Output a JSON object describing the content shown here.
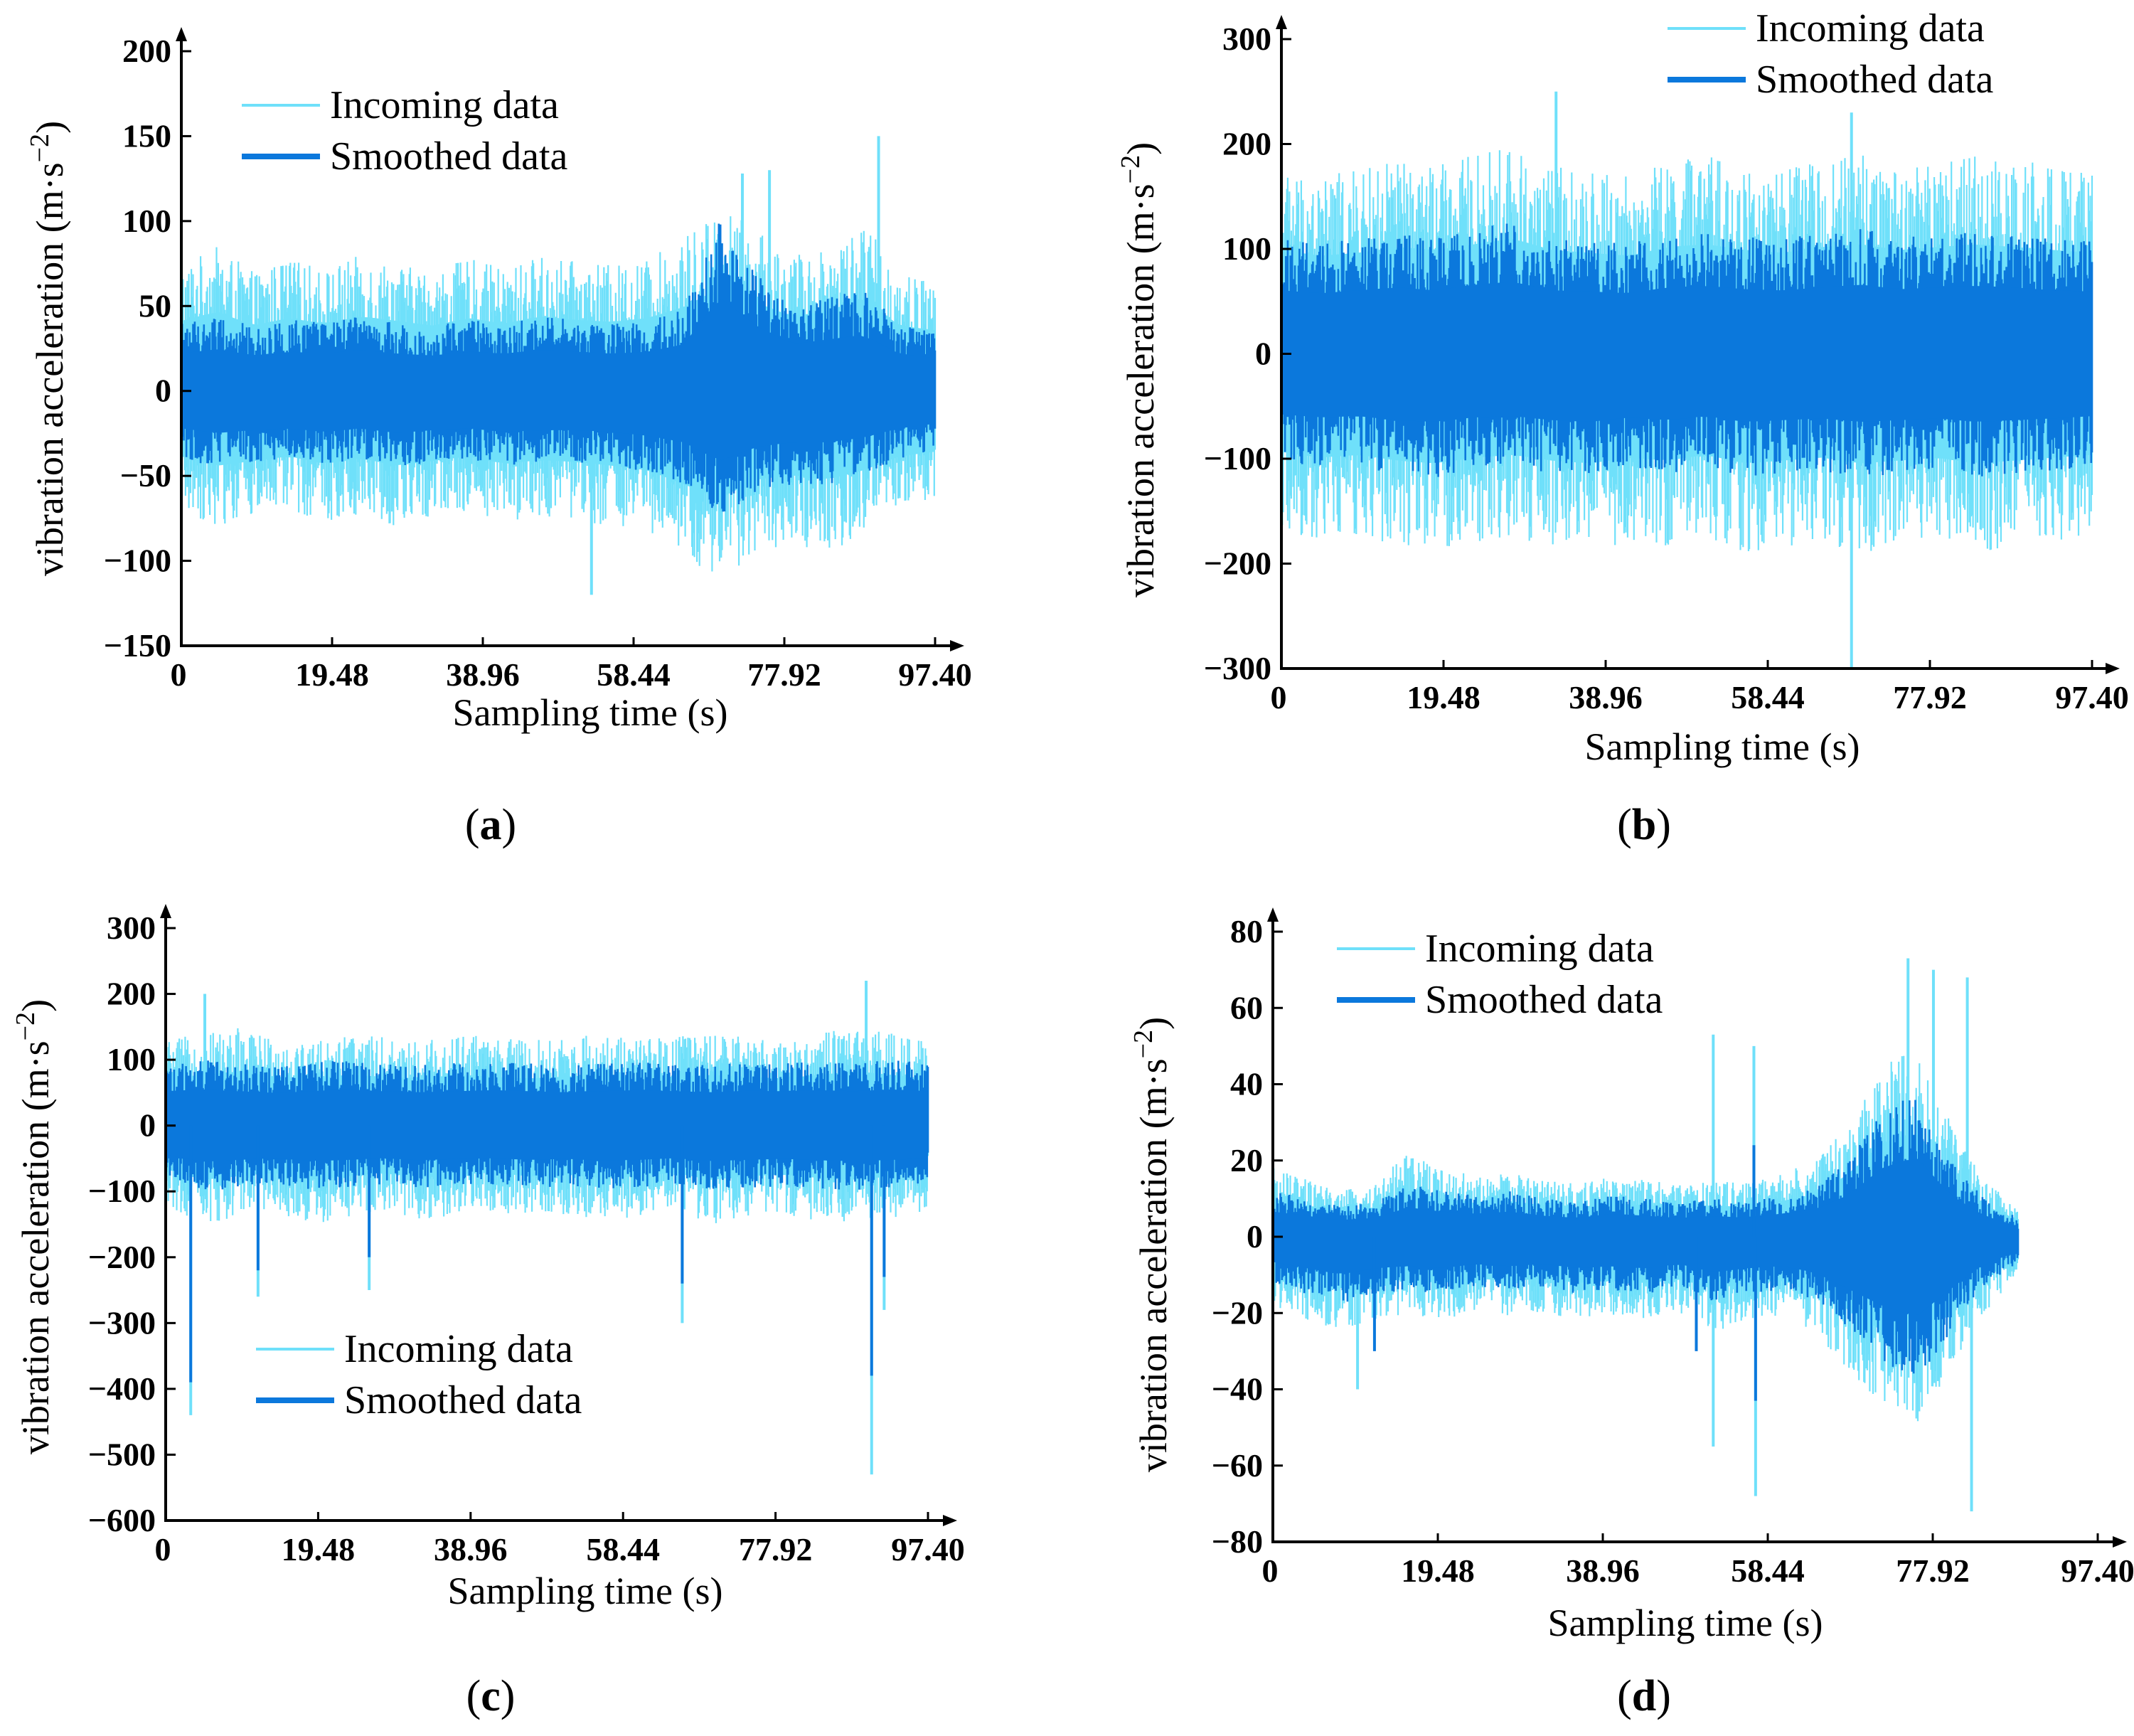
{
  "figure": {
    "colors": {
      "incoming": "#6FE0FA",
      "smoothed": "#0B78DC",
      "axis": "#000000",
      "background": "#ffffff"
    }
  },
  "chart_data": [
    {
      "id": "a",
      "type": "line",
      "panel_label": {
        "open": "(",
        "letter": "a",
        "close": ")"
      },
      "xlabel": "Sampling time (s)",
      "ylabel": {
        "main": "vibration acceleration (m·s",
        "exp": "−2",
        "close": ")"
      },
      "x_ticks": [
        "0",
        "19.48",
        "38.96",
        "58.44",
        "77.92",
        "97.40"
      ],
      "x_tick_values": [
        0,
        19.48,
        38.96,
        58.44,
        77.92,
        97.4
      ],
      "y_ticks": [
        "200",
        "150",
        "100",
        "50",
        "0",
        "−50",
        "−100",
        "−150"
      ],
      "y_tick_values": [
        200,
        150,
        100,
        50,
        0,
        -50,
        -100,
        -150
      ],
      "xlim": [
        0,
        97.4
      ],
      "ylim": [
        -150,
        200
      ],
      "legend_position": "top-left",
      "grid": false,
      "series": [
        {
          "name": "Incoming data",
          "role": "incoming",
          "envelope_upper": [
            75,
            85,
            70,
            78,
            72,
            80,
            75,
            70,
            78,
            72,
            80,
            76,
            74,
            78,
            90,
            110,
            95,
            80,
            85,
            100,
            70,
            65
          ],
          "envelope_lower": [
            -70,
            -80,
            -75,
            -70,
            -78,
            -72,
            -80,
            -75,
            -70,
            -78,
            -74,
            -76,
            -80,
            -85,
            -100,
            -115,
            -95,
            -90,
            -95,
            -85,
            -70,
            -65
          ],
          "spikes": [
            [
              90.1,
              150
            ],
            [
              76.0,
              130
            ],
            [
              53.0,
              -120
            ],
            [
              72.5,
              128
            ]
          ]
        },
        {
          "name": "Smoothed data",
          "role": "smoothed",
          "envelope_upper": [
            40,
            45,
            38,
            42,
            40,
            44,
            40,
            38,
            42,
            40,
            44,
            42,
            40,
            42,
            50,
            100,
            70,
            50,
            55,
            60,
            40,
            35
          ],
          "envelope_lower": [
            -40,
            -45,
            -42,
            -40,
            -44,
            -40,
            -45,
            -42,
            -40,
            -44,
            -42,
            -42,
            -44,
            -48,
            -55,
            -75,
            -60,
            -55,
            -55,
            -50,
            -40,
            -35
          ]
        }
      ]
    },
    {
      "id": "b",
      "type": "line",
      "panel_label": {
        "open": "(",
        "letter": "b",
        "close": ")"
      },
      "xlabel": "Sampling time (s)",
      "ylabel": {
        "main": "vibration acceleration (m·s",
        "exp": "−2",
        "close": ")"
      },
      "x_ticks": [
        "0",
        "19.48",
        "38.96",
        "58.44",
        "77.92",
        "97.40"
      ],
      "x_tick_values": [
        0,
        19.48,
        38.96,
        58.44,
        77.92,
        97.4
      ],
      "y_ticks": [
        "300",
        "200",
        "100",
        "0",
        "−100",
        "−200",
        "−300"
      ],
      "y_tick_values": [
        300,
        200,
        100,
        0,
        -100,
        -200,
        -300
      ],
      "xlim": [
        0,
        97.4
      ],
      "ylim": [
        -300,
        300
      ],
      "legend_position": "top-right",
      "grid": false,
      "series": [
        {
          "name": "Incoming data",
          "role": "incoming",
          "envelope_upper": [
            180,
            170,
            175,
            185,
            180,
            190,
            200,
            180,
            175,
            170,
            185,
            190,
            180,
            175,
            185,
            190,
            180,
            185,
            190,
            185,
            180,
            175
          ],
          "envelope_lower": [
            -170,
            -180,
            -175,
            -185,
            -190,
            -180,
            -175,
            -185,
            -190,
            -180,
            -185,
            -175,
            -190,
            -185,
            -180,
            -190,
            -185,
            -180,
            -190,
            -185,
            -180,
            -175
          ],
          "spikes": [
            [
              33.0,
              250
            ],
            [
              68.5,
              -300
            ],
            [
              68.5,
              230
            ]
          ]
        },
        {
          "name": "Smoothed data",
          "role": "smoothed",
          "envelope_upper": [
            110,
            105,
            110,
            115,
            110,
            120,
            125,
            110,
            108,
            105,
            115,
            118,
            112,
            110,
            115,
            120,
            112,
            115,
            118,
            115,
            110,
            108
          ],
          "envelope_lower": [
            -105,
            -110,
            -108,
            -115,
            -118,
            -110,
            -108,
            -115,
            -118,
            -110,
            -115,
            -108,
            -118,
            -115,
            -112,
            -118,
            -115,
            -112,
            -118,
            -115,
            -112,
            -108
          ]
        }
      ]
    },
    {
      "id": "c",
      "type": "line",
      "panel_label": {
        "open": "(",
        "letter": "c",
        "close": ")"
      },
      "xlabel": "Sampling time (s)",
      "ylabel": {
        "main": "vibration acceleration (m·s",
        "exp": "−2",
        "close": ")"
      },
      "x_ticks": [
        "0",
        "19.48",
        "38.96",
        "58.44",
        "77.92",
        "97.40"
      ],
      "x_tick_values": [
        0,
        19.48,
        38.96,
        58.44,
        77.92,
        97.4
      ],
      "y_ticks": [
        "300",
        "200",
        "100",
        "0",
        "−100",
        "−200",
        "−300",
        "−400",
        "−500",
        "−600"
      ],
      "y_tick_values": [
        300,
        200,
        100,
        0,
        -100,
        -200,
        -300,
        -400,
        -500,
        -600
      ],
      "xlim": [
        0,
        97.4
      ],
      "ylim": [
        -600,
        300
      ],
      "legend_position": "bottom-left",
      "grid": false,
      "series": [
        {
          "name": "Incoming data",
          "role": "incoming",
          "envelope_upper": [
            130,
            140,
            150,
            135,
            130,
            140,
            135,
            130,
            140,
            135,
            130,
            135,
            140,
            130,
            135,
            140,
            135,
            130,
            140,
            150,
            140,
            130
          ],
          "envelope_lower": [
            -120,
            -150,
            -140,
            -130,
            -150,
            -140,
            -130,
            -145,
            -135,
            -130,
            -140,
            -135,
            -145,
            -140,
            -130,
            -150,
            -140,
            -135,
            -145,
            -150,
            -140,
            -130
          ],
          "spikes": [
            [
              3.2,
              -440
            ],
            [
              90.2,
              -530
            ],
            [
              11.8,
              -260
            ],
            [
              26.0,
              -250
            ],
            [
              66.0,
              -300
            ],
            [
              89.5,
              220
            ],
            [
              5.0,
              200
            ],
            [
              91.8,
              -280
            ]
          ]
        },
        {
          "name": "Smoothed data",
          "role": "smoothed",
          "envelope_upper": [
            95,
            100,
            95,
            90,
            95,
            100,
            95,
            92,
            95,
            98,
            95,
            92,
            95,
            98,
            95,
            92,
            96,
            95,
            98,
            95,
            100,
            95
          ],
          "envelope_lower": [
            -80,
            -100,
            -95,
            -90,
            -98,
            -95,
            -90,
            -96,
            -92,
            -90,
            -95,
            -92,
            -96,
            -95,
            -90,
            -98,
            -95,
            -92,
            -96,
            -98,
            -95,
            -90
          ],
          "spikes": [
            [
              3.2,
              -390
            ],
            [
              90.2,
              -380
            ],
            [
              66.0,
              -240
            ],
            [
              11.8,
              -220
            ],
            [
              26.0,
              -200
            ],
            [
              91.8,
              -230
            ]
          ]
        }
      ]
    },
    {
      "id": "d",
      "type": "line",
      "panel_label": {
        "open": "(",
        "letter": "d",
        "close": ")"
      },
      "xlabel": "Sampling time (s)",
      "ylabel": {
        "main": "vibration acceleration (m·s",
        "exp": "−2",
        "close": ")"
      },
      "x_ticks": [
        "0",
        "19.48",
        "38.96",
        "58.44",
        "77.92",
        "97.40"
      ],
      "x_tick_values": [
        0,
        19.48,
        38.96,
        58.44,
        77.92,
        97.4
      ],
      "y_ticks": [
        "80",
        "60",
        "40",
        "20",
        "0",
        "−20",
        "−40",
        "−60",
        "−80"
      ],
      "y_tick_values": [
        80,
        60,
        40,
        20,
        0,
        -20,
        -40,
        -60,
        -80
      ],
      "xlim": [
        0,
        97.4
      ],
      "ylim": [
        -80,
        90
      ],
      "x_data_max": 88,
      "legend_position": "top-left",
      "grid": false,
      "series": [
        {
          "name": "Incoming data",
          "role": "incoming",
          "envelope_upper": [
            18,
            15,
            12,
            14,
            22,
            18,
            16,
            17,
            15,
            14,
            16,
            15,
            14,
            15,
            14,
            17,
            20,
            30,
            45,
            50,
            30,
            15,
            8
          ],
          "envelope_lower": [
            -18,
            -22,
            -25,
            -22,
            -20,
            -22,
            -20,
            -21,
            -20,
            -22,
            -21,
            -22,
            -20,
            -25,
            -22,
            -21,
            -25,
            -35,
            -45,
            -50,
            -35,
            -20,
            -10
          ],
          "spikes": [
            [
              52.0,
              53
            ],
            [
              56.8,
              50
            ],
            [
              57.0,
              -68
            ],
            [
              75.0,
              73
            ],
            [
              78.0,
              70
            ],
            [
              82.0,
              68
            ],
            [
              82.5,
              -72
            ],
            [
              52.0,
              -55
            ],
            [
              10.0,
              -40
            ]
          ]
        },
        {
          "name": "Smoothed data",
          "role": "smoothed",
          "envelope_upper": [
            12,
            10,
            8,
            9,
            14,
            12,
            11,
            12,
            10,
            9,
            11,
            10,
            9,
            10,
            9,
            11,
            13,
            20,
            33,
            38,
            20,
            10,
            5
          ],
          "envelope_lower": [
            -12,
            -15,
            -18,
            -15,
            -14,
            -15,
            -13,
            -14,
            -13,
            -15,
            -14,
            -15,
            -13,
            -17,
            -15,
            -14,
            -17,
            -25,
            -33,
            -38,
            -25,
            -13,
            -7
          ],
          "spikes": [
            [
              56.8,
              24
            ],
            [
              57.0,
              -43
            ],
            [
              50.0,
              -30
            ],
            [
              12.0,
              -30
            ]
          ]
        }
      ]
    }
  ]
}
